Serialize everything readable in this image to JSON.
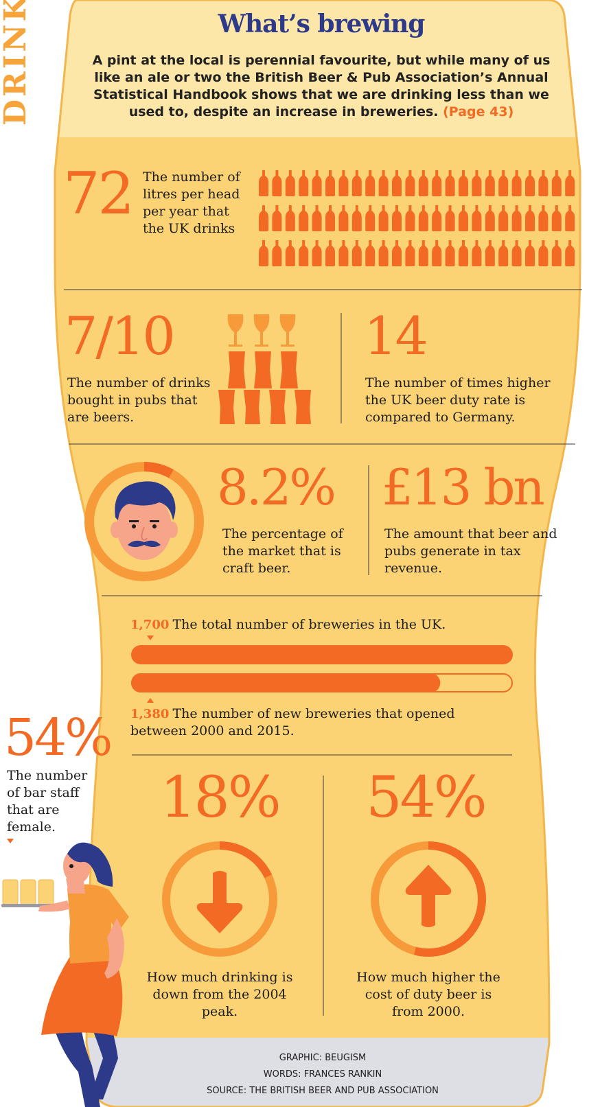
{
  "side_label": "DRINK",
  "header": {
    "title": "What’s brewing",
    "intro": "A pint at the local is perennial favourite, but while many of us like an ale or two the British Beer & Pub Association’s Annual Statistical Handbook shows that we are drinking less than we used to, despite an increase in breweries.",
    "page_ref": "(Page 43)"
  },
  "stats": {
    "litres": {
      "value": "72",
      "label": "The number of litres per head per year that the UK drinks",
      "icon_count": 72,
      "icon": "beer-bottle-icon"
    },
    "beer_share": {
      "value": "7/10",
      "label": "The number of drinks bought in pubs that are beers.",
      "icon": "glasses-icon"
    },
    "duty": {
      "value": "14",
      "label": "The number of times higher the UK beer duty rate is compared to Germany."
    },
    "craft": {
      "value": "8.2%",
      "label": "The percentage of the market that is craft beer.",
      "ring_fraction": 0.082,
      "icon": "man-avatar-icon"
    },
    "tax": {
      "value": "£13 bn",
      "label": "The amount that beer and pubs generate in tax revenue."
    },
    "breweries_total": {
      "value": "1,700",
      "label": "The total number of breweries in the UK."
    },
    "breweries_new": {
      "value": "1,380",
      "label": "The number of new breweries that opened between 2000 and 2015.",
      "fraction_of_total": 0.81
    },
    "bar_staff": {
      "value": "54%",
      "label": "The number of bar staff that are female.",
      "icon": "barmaid-icon"
    },
    "drinking_down": {
      "value": "18%",
      "label": "How much drinking is down from the 2004 peak.",
      "ring_fraction": 0.18,
      "icon": "arrow-down-icon"
    },
    "duty_up": {
      "value": "54%",
      "label": "How much higher the cost of duty beer is from 2000.",
      "ring_fraction": 0.54,
      "icon": "arrow-up-icon"
    }
  },
  "credits": {
    "graphic": "GRAPHIC: BEUGISM",
    "words": "WORDS: FRANCES RANKIN",
    "source": "SOURCE: THE BRITISH BEER AND PUB ASSOCIATION"
  },
  "colors": {
    "glass": "#fbd274",
    "header_band": "#fde7a8",
    "accent": "#f26a24",
    "accent_light": "#f79a3a",
    "navy": "#2d3a8a",
    "foot": "#dedfe4"
  }
}
